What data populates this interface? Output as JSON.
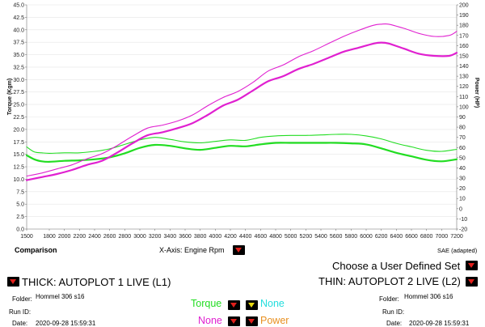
{
  "chart_data": {
    "type": "line",
    "xlabel": "X-Axis: Engine Rpm",
    "ylabel_left": "Torque (Kgm)",
    "ylabel_right": "Power (HP)",
    "xlim": [
      1500,
      7200
    ],
    "ylim_left": [
      0,
      45
    ],
    "ylim_right": [
      -20,
      200
    ],
    "x_ticks": [
      "1500",
      "1800",
      "2000",
      "2200",
      "2400",
      "2600",
      "2800",
      "3000",
      "3200",
      "3400",
      "3600",
      "3800",
      "4000",
      "4200",
      "4400",
      "4600",
      "4800",
      "5000",
      "5200",
      "5400",
      "5600",
      "5800",
      "6000",
      "6200",
      "6400",
      "6600",
      "6800",
      "7000",
      "7200"
    ],
    "y_left_ticks": [
      "0.0",
      "2.5",
      "5.0",
      "7.5",
      "10.0",
      "12.5",
      "15.0",
      "17.5",
      "20.0",
      "22.5",
      "25.0",
      "27.5",
      "30.0",
      "32.5",
      "35.0",
      "37.5",
      "40.0",
      "42.5",
      "45.0"
    ],
    "y_right_ticks": [
      "-20",
      "-10",
      "0",
      "10",
      "20",
      "30",
      "40",
      "50",
      "60",
      "70",
      "80",
      "90",
      "100",
      "110",
      "120",
      "130",
      "140",
      "150",
      "160",
      "170",
      "180",
      "190",
      "200"
    ],
    "series": [
      {
        "name": "THICK: AUTOPLOT 1 LIVE (L1)",
        "kind": "Torque",
        "axis": "left",
        "color": "#22dd22",
        "width": 2.2,
        "x": [
          1500,
          1600,
          1700,
          1800,
          2000,
          2200,
          2400,
          2600,
          2800,
          3000,
          3200,
          3400,
          3600,
          3800,
          4000,
          4200,
          4400,
          4600,
          4800,
          5000,
          5200,
          5400,
          5600,
          5800,
          6000,
          6200,
          6400,
          6600,
          6800,
          7000,
          7200
        ],
        "y": [
          14.8,
          14.0,
          13.6,
          13.5,
          13.7,
          13.8,
          14.0,
          14.4,
          15.2,
          16.3,
          16.9,
          16.7,
          16.2,
          15.9,
          16.3,
          16.7,
          16.6,
          17.0,
          17.3,
          17.3,
          17.3,
          17.3,
          17.3,
          17.2,
          17.0,
          16.2,
          15.3,
          14.6,
          13.9,
          13.6,
          14.0
        ]
      },
      {
        "name": "THIN: AUTOPLOT 2 LIVE (L2)",
        "kind": "Torque",
        "axis": "left",
        "color": "#22dd22",
        "width": 1.1,
        "x": [
          1500,
          1600,
          1700,
          1800,
          2000,
          2200,
          2400,
          2600,
          2800,
          3000,
          3200,
          3400,
          3600,
          3800,
          4000,
          4200,
          4400,
          4600,
          4800,
          5000,
          5200,
          5400,
          5600,
          5800,
          6000,
          6200,
          6400,
          6600,
          6800,
          7000,
          7200
        ],
        "y": [
          16.5,
          15.5,
          15.3,
          15.2,
          15.3,
          15.3,
          15.6,
          16.1,
          17.0,
          17.9,
          18.4,
          18.0,
          17.5,
          17.3,
          17.6,
          17.9,
          17.8,
          18.4,
          18.7,
          18.8,
          18.8,
          18.9,
          19.0,
          19.0,
          18.7,
          18.1,
          17.2,
          16.5,
          15.8,
          15.6,
          16.0
        ]
      },
      {
        "name": "THICK: AUTOPLOT 1 LIVE (L1)",
        "kind": "Power",
        "axis": "right",
        "color": "#e020d0",
        "width": 2.2,
        "x": [
          1500,
          1700,
          1900,
          2100,
          2300,
          2500,
          2700,
          2900,
          3100,
          3300,
          3500,
          3700,
          3900,
          4100,
          4300,
          4500,
          4700,
          4900,
          5100,
          5300,
          5500,
          5700,
          5900,
          6100,
          6200,
          6300,
          6500,
          6700,
          6900,
          7100,
          7200
        ],
        "y": [
          28,
          31,
          34,
          38,
          43,
          47,
          55,
          64,
          72,
          75,
          79,
          84,
          92,
          101,
          107,
          116,
          125,
          130,
          137,
          142,
          148,
          154,
          158,
          162,
          163,
          162,
          157,
          152,
          150,
          150,
          153
        ]
      },
      {
        "name": "THIN: AUTOPLOT 2 LIVE (L2)",
        "kind": "Power",
        "axis": "right",
        "color": "#e020d0",
        "width": 1.1,
        "x": [
          1500,
          1700,
          1900,
          2100,
          2300,
          2500,
          2700,
          2900,
          3100,
          3300,
          3500,
          3700,
          3900,
          4100,
          4300,
          4500,
          4700,
          4900,
          5100,
          5300,
          5500,
          5700,
          5900,
          6100,
          6200,
          6300,
          6500,
          6700,
          6900,
          7100,
          7200
        ],
        "y": [
          32,
          35,
          39,
          43,
          49,
          54,
          62,
          71,
          79,
          82,
          86,
          92,
          101,
          109,
          115,
          124,
          135,
          141,
          149,
          155,
          162,
          169,
          175,
          180,
          181,
          181,
          177,
          172,
          169,
          170,
          174
        ]
      }
    ]
  },
  "footer": {
    "comparison_label": "Comparison",
    "xaxis_label": "X-Axis: Engine Rpm",
    "correction": "SAE (adapted)",
    "user_set_label": "Choose a User Defined Set",
    "thick_label": "THICK: AUTOPLOT 1 LIVE (L1)",
    "thin_label": "THIN: AUTOPLOT 2 LIVE (L2)",
    "left_folder_label": "Folder:",
    "left_folder_value": "Hommel 306 s16",
    "left_runid_label": "Run ID:",
    "left_date_label": "Date:",
    "left_date_value": "2020-09-28 15:59:31",
    "right_folder_label": "Folder:",
    "right_folder_value": "Hommel 306 s16",
    "right_runid_label": "Run ID:",
    "right_date_label": "Date:",
    "right_date_value": "2020-09-28 15:59:31",
    "sel_torque": "Torque",
    "sel_none1": "None",
    "sel_none2": "None",
    "sel_power": "Power",
    "colors": {
      "torque": "#22dd22",
      "none1": "#22dddd",
      "none2": "#e020d0",
      "power": "#e89020"
    }
  }
}
